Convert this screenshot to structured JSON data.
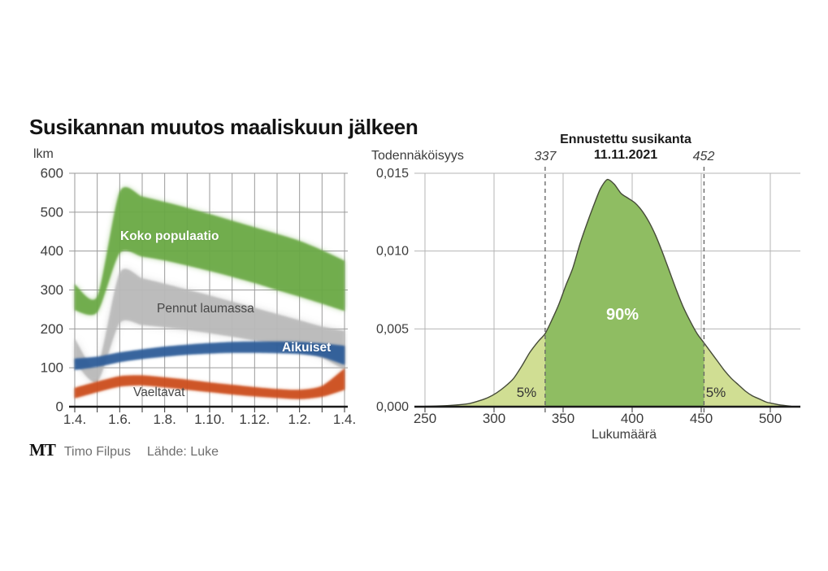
{
  "page": {
    "title": "Susikannan muutos maaliskuun jälkeen"
  },
  "footer": {
    "logo": "MT",
    "credit": "Timo Filpus",
    "source": "Lähde: Luke"
  },
  "chart_data": [
    {
      "type": "area",
      "title": "Susikannan muutos maaliskuun jälkeen",
      "ylabel": "lkm",
      "ylim": [
        0,
        600
      ],
      "grid": true,
      "ytick_values": [
        0,
        100,
        200,
        300,
        400,
        500,
        600
      ],
      "ytick_labels": [
        "0",
        "100",
        "200",
        "300",
        "400",
        "500",
        "600"
      ],
      "xtick_labels": [
        "1.4.",
        "1.6.",
        "1.8.",
        "1.10.",
        "1.12.",
        "1.2.",
        "1.4."
      ],
      "x_months_from_april": [
        0,
        1,
        2,
        3,
        4,
        5,
        6,
        7,
        8,
        9,
        10,
        11,
        12
      ],
      "series": [
        {
          "name": "Koko populaatio",
          "color": "#6aa944",
          "low": [
            248,
            243,
            395,
            386,
            376,
            363,
            349,
            334,
            318,
            300,
            283,
            265,
            246
          ],
          "high": [
            315,
            283,
            552,
            540,
            526,
            511,
            495,
            478,
            461,
            444,
            426,
            402,
            375
          ]
        },
        {
          "name": "Pennut laumassa",
          "color": "#b9b9b9",
          "low": [
            115,
            64,
            215,
            210,
            204,
            197,
            189,
            180,
            170,
            159,
            146,
            126,
            95
          ],
          "high": [
            175,
            103,
            344,
            330,
            316,
            301,
            286,
            270,
            254,
            238,
            222,
            206,
            195
          ]
        },
        {
          "name": "Aikuiset",
          "color": "#2f5d99",
          "low": [
            95,
            103,
            115,
            123,
            129,
            134,
            137,
            139,
            139,
            138,
            136,
            128,
            108
          ],
          "high": [
            123,
            128,
            139,
            147,
            154,
            159,
            163,
            166,
            167,
            167,
            166,
            162,
            156
          ]
        },
        {
          "name": "Vaeltavat",
          "color": "#cc4d1d",
          "low": [
            22,
            38,
            52,
            55,
            50,
            44,
            38,
            32,
            27,
            23,
            20,
            26,
            44
          ],
          "high": [
            48,
            64,
            78,
            80,
            75,
            69,
            62,
            56,
            50,
            45,
            43,
            53,
            98
          ]
        }
      ]
    },
    {
      "type": "area",
      "title": "Ennustettu susikanta",
      "subtitle": "11.11.2021",
      "ylabel": "Todennäköisyys",
      "xlabel": "Lukumäärä",
      "ylim": [
        0,
        0.015
      ],
      "xlim": [
        250,
        520
      ],
      "grid": true,
      "ytick_values": [
        0,
        0.005,
        0.01,
        0.015
      ],
      "ytick_labels": [
        "0,000",
        "0,005",
        "0,010",
        "0,015"
      ],
      "xtick_values": [
        250,
        300,
        350,
        400,
        450,
        500
      ],
      "xtick_labels": [
        "250",
        "300",
        "350",
        "400",
        "450",
        "500"
      ],
      "colors": {
        "body": "#8dbb60",
        "tail": "#cedd8f",
        "outline": "#454a38"
      },
      "interval": {
        "low": 337,
        "high": 452,
        "body_label": "90%",
        "tail_label_left": "5%",
        "tail_label_right": "5%"
      },
      "x": [
        250,
        258,
        266,
        274,
        282,
        290,
        296,
        302,
        308,
        314,
        320,
        326,
        332,
        337,
        342,
        347,
        352,
        357,
        362,
        367,
        372,
        377,
        382,
        387,
        392,
        397,
        402,
        407,
        412,
        417,
        422,
        427,
        432,
        437,
        442,
        447,
        452,
        457,
        462,
        467,
        472,
        477,
        482,
        487,
        492,
        497,
        502,
        508,
        515
      ],
      "density": [
        2e-05,
        4e-05,
        7e-05,
        0.00012,
        0.0002,
        0.0004,
        0.0006,
        0.0009,
        0.0013,
        0.0018,
        0.0026,
        0.0035,
        0.0042,
        0.0047,
        0.0056,
        0.0066,
        0.0078,
        0.0089,
        0.0104,
        0.0117,
        0.0129,
        0.014,
        0.0146,
        0.0143,
        0.0137,
        0.0134,
        0.0131,
        0.0126,
        0.0119,
        0.011,
        0.0099,
        0.0087,
        0.0075,
        0.0064,
        0.0055,
        0.0047,
        0.0041,
        0.0035,
        0.0029,
        0.0023,
        0.0018,
        0.0014,
        0.001,
        0.0007,
        0.0005,
        0.0003,
        0.0002,
        0.0001,
        3e-05
      ]
    }
  ]
}
